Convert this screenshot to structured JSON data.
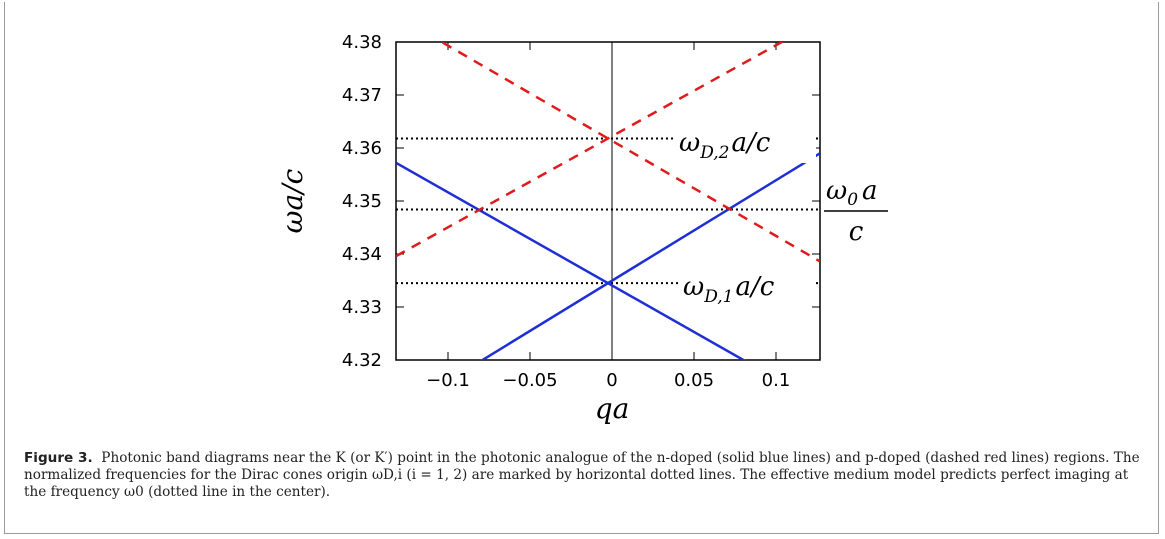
{
  "chart_data": {
    "type": "line",
    "xlabel": "qa",
    "ylabel": "ωa/c",
    "xlim": [
      -0.13,
      0.13
    ],
    "ylim": [
      4.32,
      4.38
    ],
    "x_ticks": [
      "−0.1",
      "−0.05",
      "0",
      "0.05",
      "0.1"
    ],
    "x_tick_values": [
      -0.1,
      -0.05,
      0,
      0.05,
      0.1
    ],
    "y_ticks": [
      "4.32",
      "4.33",
      "4.34",
      "4.35",
      "4.36",
      "4.37",
      "4.38"
    ],
    "y_tick_values": [
      4.32,
      4.33,
      4.34,
      4.35,
      4.36,
      4.37,
      4.38
    ],
    "series": [
      {
        "style": "solid",
        "color": "#1f2fd6",
        "x": [
          -0.13,
          0.13
        ],
        "y": [
          4.3572,
          4.359
        ]
      },
      {
        "style": "solid",
        "color": "#1f2fd6",
        "x": [
          -0.13,
          0.13
        ],
        "y": [
          4.359,
          4.3572
        ]
      },
      {
        "style": "dashed",
        "color": "#e01b1b",
        "x": [
          -0.13,
          0.13
        ],
        "y": [
          4.3396,
          4.3838
        ]
      },
      {
        "style": "dashed",
        "color": "#e01b1b",
        "x": [
          -0.13,
          0.13
        ],
        "y": [
          4.3838,
          4.3386
        ]
      }
    ],
    "solid_lines_blue": [
      {
        "x": [
          -0.13,
          0.0,
          0.13
        ],
        "y": [
          4.3572,
          4.3345,
          4.359
        ]
      },
      {
        "x": [
          -0.08,
          0.0,
          0.075
        ],
        "y": [
          4.32,
          4.3345,
          4.32
        ]
      }
    ],
    "dashed_lines_red": [
      {
        "x": [
          -0.13,
          0.0,
          0.13
        ],
        "y": [
          4.3396,
          4.3618,
          4.3838
        ]
      },
      {
        "x": [
          -0.105,
          0.0,
          0.13
        ],
        "y": [
          4.38,
          4.3618,
          4.3386
        ]
      }
    ],
    "hlines": [
      {
        "y": 4.3618,
        "label": "ω_{D,2} a/c"
      },
      {
        "y": 4.3484,
        "label": "ω_0 a / c"
      },
      {
        "y": 4.3345,
        "label": "ω_{D,1} a/c"
      }
    ],
    "vline_x": 0
  },
  "labels": {
    "wd2_omega": "ω",
    "wd2_sub": "D,2",
    "wd2_rest": "a/c",
    "w0_num_omega": "ω",
    "w0_num_sub": "0",
    "w0_num_rest": "a",
    "w0_den": "c",
    "wd1_omega": "ω",
    "wd1_sub": "D,1",
    "wd1_rest": "a/c"
  },
  "caption": {
    "label": "Figure 3.",
    "text": "Photonic band diagrams near the K (or K′) point in the photonic analogue of the n-doped (solid blue lines) and p-doped (dashed red lines) regions. The normalized frequencies for the Dirac cones origin ωD,i (i = 1, 2) are marked by horizontal dotted lines. The effective medium model predicts perfect imaging at the frequency ω0 (dotted line in the center)."
  }
}
